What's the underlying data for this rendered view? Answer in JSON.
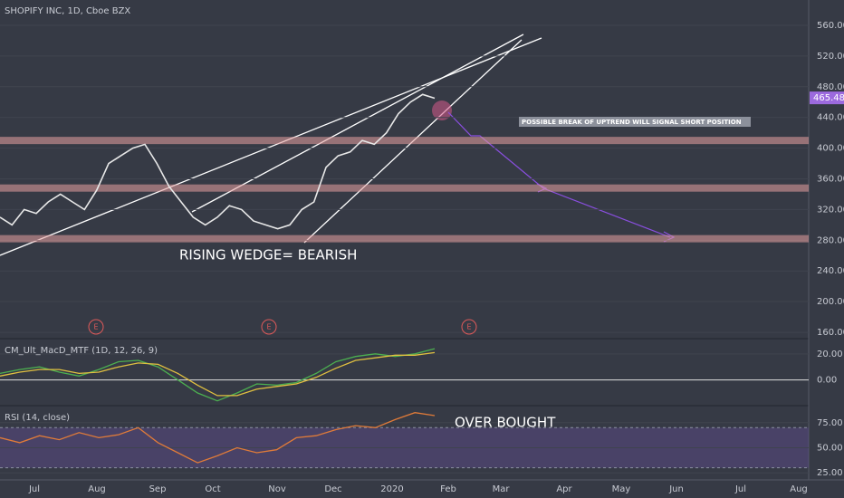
{
  "chart_data": [
    {
      "type": "line",
      "title": "SHOPIFY INC, 1D, Cboe BZX",
      "ylim": [
        153,
        593
      ],
      "yticks": [
        {
          "value": 160,
          "label": "160.00"
        },
        {
          "value": 200,
          "label": "200.00"
        },
        {
          "value": 240,
          "label": "240.00"
        },
        {
          "value": 280,
          "label": "280.00"
        },
        {
          "value": 320,
          "label": "320.00"
        },
        {
          "value": 360,
          "label": "360.00"
        },
        {
          "value": 400,
          "label": "400.00"
        },
        {
          "value": 440,
          "label": "440.00"
        },
        {
          "value": 480,
          "label": "480.00"
        },
        {
          "value": 520,
          "label": "520.00"
        },
        {
          "value": 560,
          "label": "560.00"
        }
      ],
      "series": [
        {
          "name": "Price",
          "color": "#e8e8e8",
          "values": [
            310,
            300,
            320,
            315,
            330,
            340,
            330,
            320,
            345,
            380,
            390,
            400,
            405,
            380,
            350,
            330,
            310,
            300,
            310,
            325,
            320,
            305,
            300,
            295,
            300,
            320,
            330,
            375,
            390,
            395,
            410,
            405,
            420,
            445,
            460,
            470,
            465
          ]
        }
      ],
      "zones": [
        410,
        348,
        282
      ],
      "zone_color": "#e8a0a0",
      "last_price": 465.48,
      "last_price_label": "465.48",
      "annotations": [
        "RISING WEDGE= BEARISH",
        "POSSIBLE BREAK OF UPTREND WILL SIGNAL SHORT POSITION"
      ],
      "event_markers": [
        "E",
        "E",
        "E"
      ],
      "x_labels": [
        "Jul",
        "Aug",
        "Sep",
        "Oct",
        "Nov",
        "Dec",
        "2020",
        "Feb",
        "Mar",
        "Apr",
        "May",
        "Jun",
        "Jul",
        "Aug"
      ]
    },
    {
      "type": "line",
      "title": "CM_Ult_MacD_MTF (1D, 12, 26, 9)",
      "ylim": [
        -19,
        31
      ],
      "yticks": [
        {
          "value": 20,
          "label": "20.00"
        },
        {
          "value": 0,
          "label": "0.00"
        }
      ],
      "series": [
        {
          "name": "MACD",
          "color": "#4caf50",
          "values": [
            5,
            8,
            10,
            6,
            3,
            8,
            14,
            15,
            10,
            0,
            -10,
            -16,
            -10,
            -3,
            -4,
            -2,
            5,
            14,
            18,
            20,
            18,
            20,
            24
          ]
        },
        {
          "name": "Signal",
          "color": "#e0c040",
          "values": [
            3,
            6,
            8,
            8,
            5,
            6,
            10,
            13,
            12,
            5,
            -4,
            -12,
            -12,
            -7,
            -5,
            -3,
            2,
            9,
            15,
            17,
            19,
            19,
            21
          ]
        }
      ]
    },
    {
      "type": "line",
      "title": "RSI (14, close)",
      "ylim": [
        18,
        91
      ],
      "yticks": [
        {
          "value": 75,
          "label": "75.00"
        },
        {
          "value": 50,
          "label": "50.00"
        },
        {
          "value": 25,
          "label": "25.00"
        }
      ],
      "band": [
        30,
        70
      ],
      "series": [
        {
          "name": "RSI",
          "color": "#e07b39",
          "values": [
            60,
            55,
            62,
            58,
            65,
            60,
            63,
            70,
            55,
            45,
            35,
            42,
            50,
            45,
            48,
            60,
            62,
            68,
            72,
            70,
            78,
            85,
            82
          ]
        }
      ],
      "annotations": [
        "OVER BOUGHT"
      ]
    }
  ]
}
